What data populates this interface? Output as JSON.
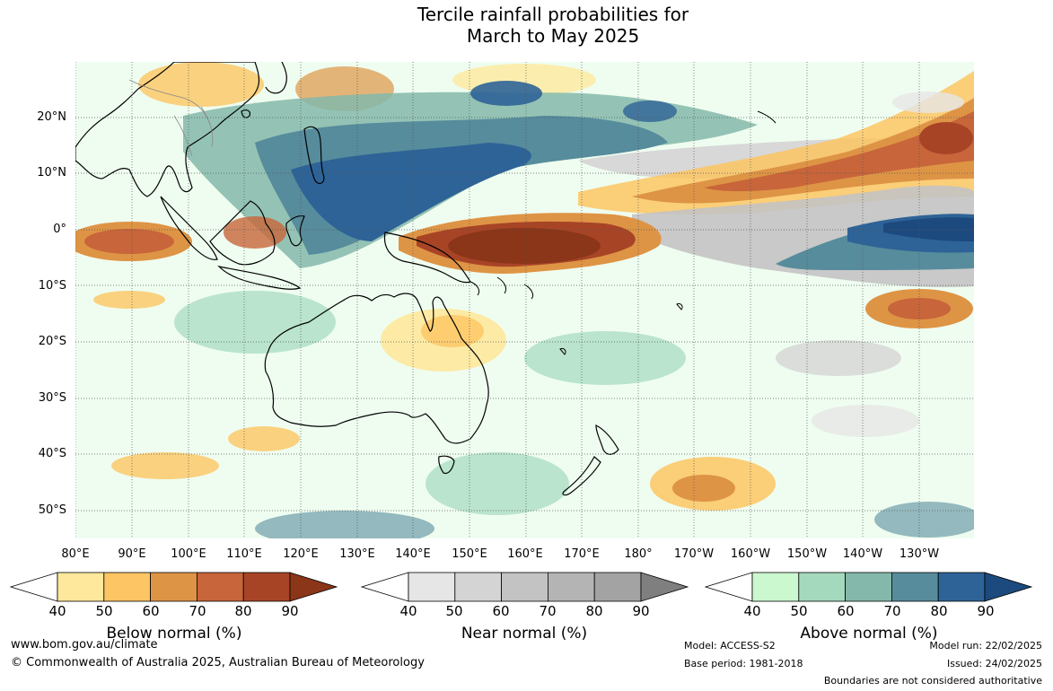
{
  "title_line1": "Tercile rainfall probabilities for",
  "title_line2": "March to May 2025",
  "latitude_labels": [
    "20°N",
    "10°N",
    "0°",
    "10°S",
    "20°S",
    "30°S",
    "40°S",
    "50°S"
  ],
  "longitude_labels": [
    "80°E",
    "90°E",
    "100°E",
    "110°E",
    "120°E",
    "130°E",
    "140°E",
    "150°E",
    "160°E",
    "170°E",
    "180°",
    "170°W",
    "160°W",
    "150°W",
    "140°W",
    "130°W"
  ],
  "colorbars": [
    {
      "title": "Below normal (%)",
      "ticks": [
        "40",
        "50",
        "60",
        "70",
        "80",
        "90"
      ],
      "colors": [
        "#ffffff",
        "#fee89c",
        "#fdc563",
        "#de9445",
        "#c8653a",
        "#a84426",
        "#8b3519"
      ]
    },
    {
      "title": "Near normal (%)",
      "ticks": [
        "40",
        "50",
        "60",
        "70",
        "80",
        "90"
      ],
      "colors": [
        "#ffffff",
        "#e6e6e6",
        "#d4d4d4",
        "#c3c3c3",
        "#b4b4b4",
        "#a3a3a3",
        "#7f7f7f"
      ]
    },
    {
      "title": "Above normal (%)",
      "ticks": [
        "40",
        "50",
        "60",
        "70",
        "80",
        "90"
      ],
      "colors": [
        "#ffffff",
        "#ccf8cf",
        "#a4d9bd",
        "#84b8aa",
        "#578c9c",
        "#2e6397",
        "#1c4a7e"
      ]
    }
  ],
  "footer": {
    "website": "www.bom.gov.au/climate",
    "copyright": "© Commonwealth of Australia 2025, Australian Bureau of Meteorology",
    "model": "Model: ACCESS-S2",
    "base_period": "Base period: 1981-2018",
    "model_run": "Model run: 22/02/2025",
    "issued": "Issued: 24/02/2025",
    "disclaimer": "Boundaries are not considered authoritative"
  }
}
